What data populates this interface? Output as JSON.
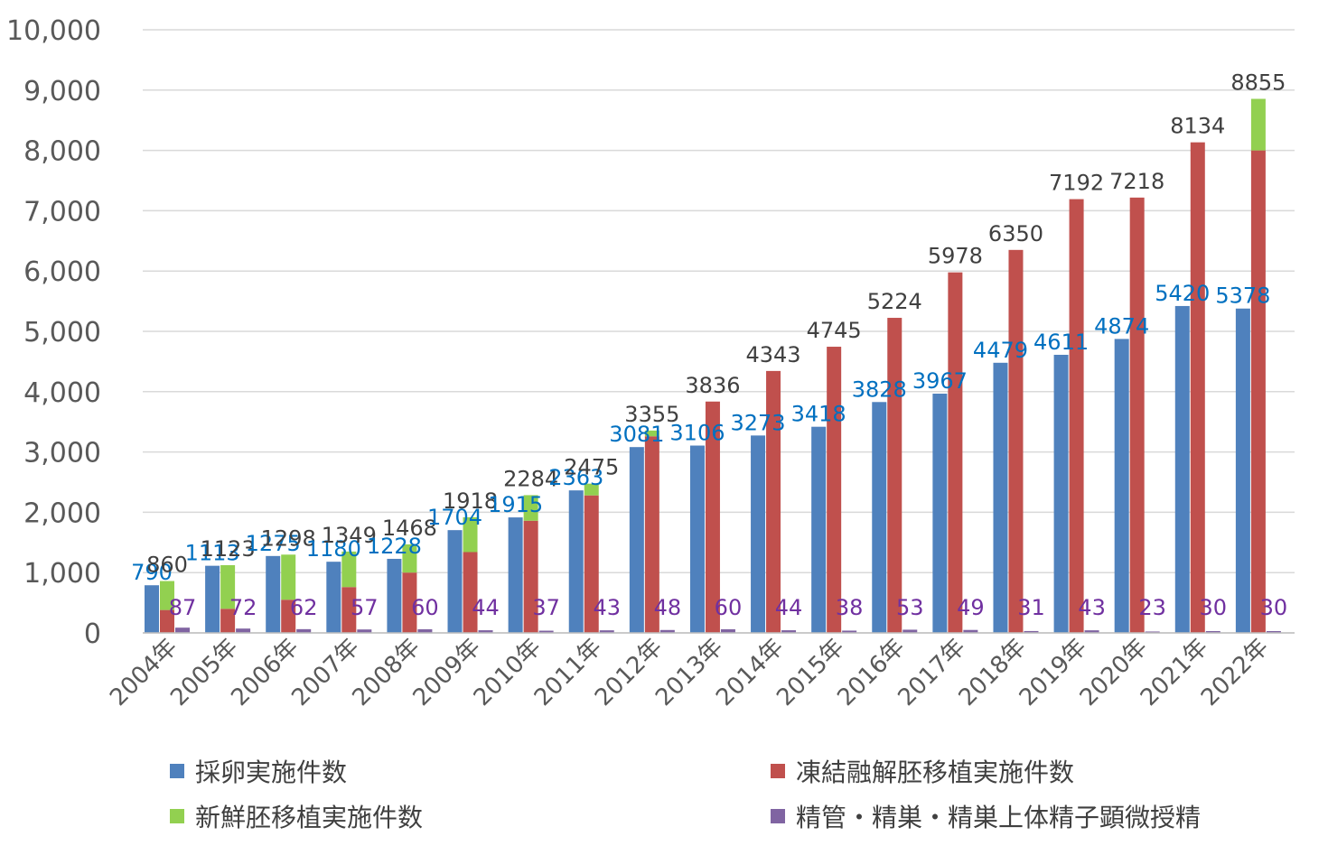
{
  "chart_data": {
    "type": "bar",
    "title": "",
    "xlabel": "",
    "ylabel": "",
    "ylim": [
      0,
      10000
    ],
    "yticks": [
      0,
      1000,
      2000,
      3000,
      4000,
      5000,
      6000,
      7000,
      8000,
      9000,
      10000
    ],
    "ytick_labels": [
      "0",
      "1,000",
      "2,000",
      "3,000",
      "4,000",
      "5,000",
      "6,000",
      "7,000",
      "8,000",
      "9,000",
      "10,000"
    ],
    "grid": true,
    "legend_position": "bottom",
    "categories": [
      "2004年",
      "2005年",
      "2006年",
      "2007年",
      "2008年",
      "2009年",
      "2010年",
      "2011年",
      "2012年",
      "2013年",
      "2014年",
      "2015年",
      "2016年",
      "2017年",
      "2018年",
      "2019年",
      "2020年",
      "2021年",
      "2022年"
    ],
    "series": [
      {
        "name": "採卵実施件数",
        "color": "#4f81bd",
        "label_color": "#0070c0",
        "values": [
          790,
          1113,
          1275,
          1180,
          1228,
          1704,
          1915,
          2363,
          3081,
          3106,
          3273,
          3418,
          3828,
          3967,
          4479,
          4611,
          4874,
          5420,
          5378
        ]
      },
      {
        "name": "凍結融解胚移植実施件数",
        "color": "#c0504d",
        "stack": "et",
        "values": [
          380,
          400,
          550,
          760,
          1000,
          1340,
          1860,
          2280,
          3260,
          3836,
          4343,
          4745,
          5224,
          5978,
          6350,
          7192,
          7218,
          8134,
          8000
        ]
      },
      {
        "name": "新鮮胚移植実施件数",
        "color": "#92d050",
        "stack": "et",
        "values": [
          480,
          723,
          748,
          589,
          468,
          578,
          424,
          195,
          95,
          0,
          0,
          0,
          0,
          0,
          0,
          0,
          0,
          0,
          855
        ]
      },
      {
        "name": "精管・精巣・精巣上体精子顕微授精",
        "color": "#8064a2",
        "label_color": "#7030a0",
        "values": [
          87,
          72,
          62,
          57,
          60,
          44,
          37,
          43,
          48,
          60,
          44,
          38,
          53,
          49,
          31,
          43,
          23,
          30,
          30
        ]
      }
    ],
    "stack_total_labels": [
      "860",
      "1123",
      "1298",
      "1349",
      "1468",
      "1918",
      "2284",
      "2475",
      "3355",
      "3836",
      "4343",
      "4745",
      "5224",
      "5978",
      "6350",
      "7192",
      "7218",
      "8134",
      "8855"
    ],
    "total_label_color": "#404040"
  }
}
